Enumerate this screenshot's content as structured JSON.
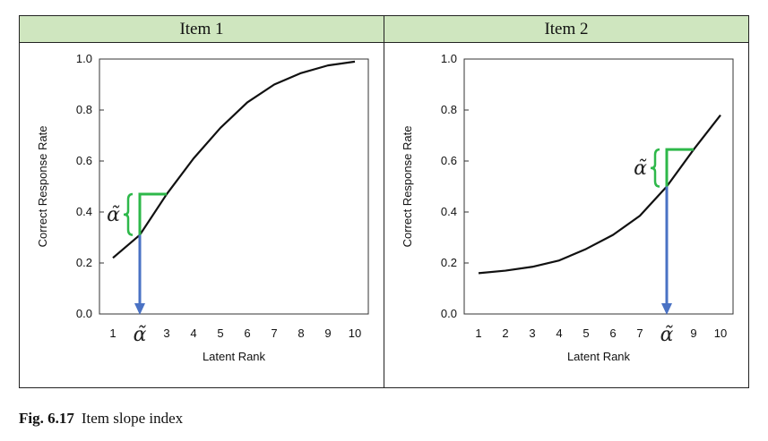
{
  "panels": [
    {
      "title": "Item 1"
    },
    {
      "title": "Item 2"
    }
  ],
  "caption": {
    "label": "Fig. 6.17",
    "text": "Item slope index"
  },
  "colors": {
    "header_bg": "#cfe6bf",
    "curve": "#111111",
    "bracket": "#2eb84a",
    "arrow": "#4a72c4"
  },
  "chart_data": [
    {
      "type": "line",
      "title": "Item 1",
      "xlabel": "Latent Rank",
      "ylabel": "Correct Response Rate",
      "x": [
        1,
        2,
        3,
        4,
        5,
        6,
        7,
        8,
        9,
        10
      ],
      "x_tick_labels": [
        "1",
        "α̃",
        "3",
        "4",
        "5",
        "6",
        "7",
        "8",
        "9",
        "10"
      ],
      "y_ticks": [
        "0.0",
        "0.2",
        "0.4",
        "0.6",
        "0.8",
        "1.0"
      ],
      "ylim": [
        0,
        1
      ],
      "series": [
        {
          "values": [
            0.22,
            0.31,
            0.47,
            0.61,
            0.73,
            0.83,
            0.9,
            0.945,
            0.975,
            0.99
          ]
        }
      ],
      "annotation": {
        "label": "α̃",
        "rank": 2,
        "from": 0.31,
        "to": 0.47
      }
    },
    {
      "type": "line",
      "title": "Item 2",
      "xlabel": "Latent Rank",
      "ylabel": "Correct Response Rate",
      "x": [
        1,
        2,
        3,
        4,
        5,
        6,
        7,
        8,
        9,
        10
      ],
      "x_tick_labels": [
        "1",
        "2",
        "3",
        "4",
        "5",
        "6",
        "7",
        "α̃",
        "9",
        "10"
      ],
      "y_ticks": [
        "0.0",
        "0.2",
        "0.4",
        "0.6",
        "0.8",
        "1.0"
      ],
      "ylim": [
        0,
        1
      ],
      "series": [
        {
          "values": [
            0.16,
            0.17,
            0.185,
            0.21,
            0.255,
            0.31,
            0.385,
            0.5,
            0.645,
            0.78
          ]
        }
      ],
      "annotation": {
        "label": "α̃",
        "rank": 8,
        "from": 0.5,
        "to": 0.645
      }
    }
  ]
}
